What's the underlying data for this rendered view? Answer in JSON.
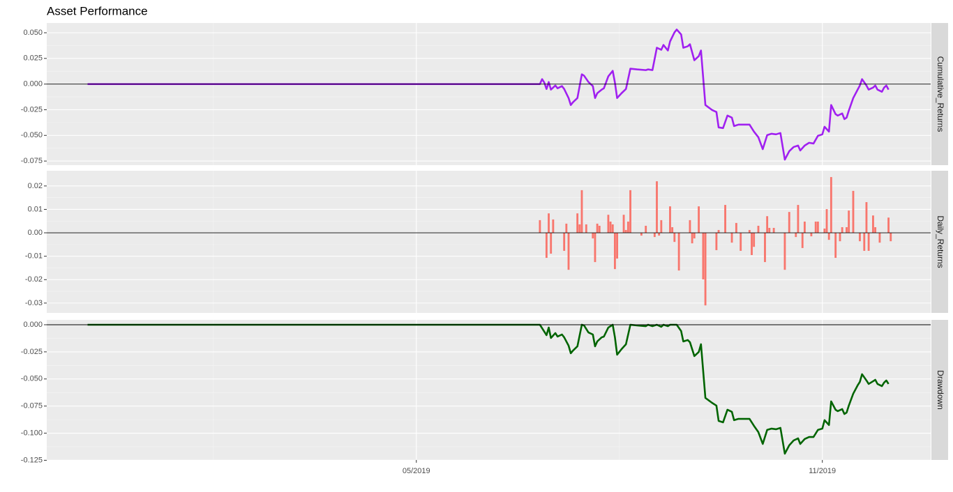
{
  "chart_data": [
    {
      "type": "line",
      "title": "Asset Performance",
      "strip": "Cumulative_Returns",
      "color": "#a020f0",
      "xlim": [
        -47.5,
        353.1
      ],
      "ylim": [
        -0.079,
        0.0595
      ],
      "yticks": [
        {
          "value": 0.05,
          "label": "0.050"
        },
        0.025,
        {
          "value": 0,
          "label": "0.000"
        },
        -0.025,
        {
          "value": -0.05,
          "label": "-0.050"
        },
        -0.075
      ],
      "x": [
        -29,
        176,
        177,
        178,
        179,
        180,
        181,
        183,
        184,
        186,
        187,
        189,
        190,
        191,
        193,
        195,
        196,
        198,
        200,
        201,
        202,
        204,
        205,
        207,
        209,
        210,
        211,
        213,
        215,
        217,
        220,
        224,
        225,
        227,
        229,
        231,
        232,
        234,
        235,
        237,
        238,
        240,
        241,
        243,
        244,
        246,
        248,
        249,
        251,
        254,
        256,
        257,
        259,
        261,
        263,
        264,
        266,
        271,
        273,
        275,
        277,
        279,
        281,
        283,
        285,
        287,
        289,
        291,
        293,
        294,
        296,
        298,
        300,
        302,
        304,
        305,
        307,
        308,
        310,
        311,
        313,
        314,
        315,
        316,
        318,
        320,
        321,
        322,
        324,
        325,
        327,
        328,
        329,
        331,
        332,
        333,
        334
      ],
      "values": [
        0,
        0,
        0.0048,
        0.0014,
        -0.0048,
        0.002,
        -0.0054,
        -0.0014,
        -0.0041,
        -0.002,
        -0.0048,
        -0.0136,
        -0.0204,
        -0.0177,
        -0.0136,
        0.0095,
        0.0082,
        0.002,
        -0.002,
        -0.0136,
        -0.0089,
        -0.0054,
        -0.0041,
        0.0075,
        0.0129,
        0.0014,
        -0.0136,
        -0.0089,
        -0.0048,
        0.015,
        0.0143,
        0.0136,
        0.0143,
        0.0136,
        0.0354,
        0.0334,
        0.0381,
        0.0327,
        0.0416,
        0.0504,
        0.0531,
        0.0484,
        0.0354,
        0.0368,
        0.0388,
        0.0232,
        0.0272,
        0.0327,
        -0.0204,
        -0.0252,
        -0.0272,
        -0.0422,
        -0.0429,
        -0.0307,
        -0.0327,
        -0.0409,
        -0.0395,
        -0.0395,
        -0.0463,
        -0.0518,
        -0.0634,
        -0.0497,
        -0.0484,
        -0.049,
        -0.0477,
        -0.0736,
        -0.0654,
        -0.0613,
        -0.0599,
        -0.0647,
        -0.0599,
        -0.0572,
        -0.0579,
        -0.0504,
        -0.049,
        -0.0416,
        -0.0463,
        -0.0204,
        -0.0293,
        -0.0307,
        -0.0286,
        -0.0341,
        -0.0327,
        -0.0259,
        -0.0136,
        -0.0054,
        -0.0014,
        0.0048,
        -0.0014,
        -0.0054,
        -0.0034,
        -0.0014,
        -0.0054,
        -0.0075,
        -0.0034,
        -0.0014,
        -0.0054
      ]
    },
    {
      "type": "bar",
      "strip": "Daily_Returns",
      "color": "#f8766d",
      "xlim": [
        -47.5,
        353.1
      ],
      "ylim": [
        -0.0342,
        0.0265
      ],
      "yticks": [
        0.02,
        0.01,
        {
          "value": 0,
          "label": "0.00"
        },
        -0.01,
        -0.02,
        -0.03
      ],
      "x": [
        176,
        179,
        180,
        181,
        182,
        187,
        188,
        189,
        193,
        194,
        195,
        197,
        200,
        201,
        202,
        203,
        207,
        208,
        209,
        210,
        211,
        214,
        215,
        216,
        217,
        222,
        224,
        228,
        229,
        230,
        231,
        235,
        236,
        237,
        239,
        244,
        245,
        246,
        248,
        250,
        251,
        256,
        257,
        260,
        263,
        265,
        267,
        271,
        272,
        273,
        275,
        278,
        279,
        280,
        282,
        287,
        289,
        292,
        293,
        295,
        296,
        299,
        301,
        302,
        305,
        306,
        307,
        308,
        310,
        312,
        313,
        315,
        316,
        318,
        321,
        323,
        324,
        325,
        327,
        328,
        330,
        334,
        335
      ],
      "values": [
        0.0054,
        -0.0107,
        0.0083,
        -0.0089,
        0.0057,
        -0.0077,
        0.0039,
        -0.0158,
        0.0083,
        0.0036,
        0.0182,
        0.0036,
        -0.0024,
        -0.0125,
        0.0039,
        0.003,
        0.0077,
        0.0048,
        0.0036,
        -0.0155,
        -0.011,
        0.0077,
        0.0012,
        0.0048,
        0.0182,
        -0.0012,
        0.003,
        -0.0018,
        0.022,
        -0.0012,
        0.0054,
        0.0113,
        0.0024,
        -0.0039,
        -0.0161,
        0.0054,
        -0.0045,
        -0.0024,
        0.0113,
        -0.0199,
        -0.031,
        -0.0074,
        0.0012,
        0.0119,
        -0.0042,
        0.0042,
        -0.0077,
        0.0012,
        -0.0095,
        -0.006,
        0.003,
        -0.0125,
        0.0071,
        0.0021,
        0.0021,
        -0.0158,
        0.0089,
        -0.0018,
        0.0119,
        -0.0065,
        0.0048,
        -0.0015,
        0.0048,
        0.0048,
        0.0018,
        0.0101,
        -0.003,
        0.0238,
        -0.0107,
        -0.0036,
        0.0024,
        0.0024,
        0.0095,
        0.0179,
        -0.0036,
        -0.0077,
        0.0131,
        -0.0077,
        0.0074,
        0.0024,
        -0.0042,
        0.0065,
        -0.0036
      ]
    },
    {
      "type": "line",
      "strip": "Drawdown",
      "color": "#006400",
      "xlim": [
        -47.5,
        353.1
      ],
      "ylim": [
        -0.1247,
        0.0045
      ],
      "yticks": [
        {
          "value": 0,
          "label": "0.000"
        },
        -0.025,
        {
          "value": -0.05,
          "label": "-0.050"
        },
        -0.075,
        {
          "value": -0.1,
          "label": "-0.100"
        },
        -0.125
      ],
      "xticks": [
        {
          "value": 120,
          "label": "05/2019"
        },
        {
          "value": 304,
          "label": "11/2019"
        }
      ],
      "x": [
        -29,
        176,
        178,
        179,
        180,
        181,
        183,
        184,
        186,
        187,
        189,
        190,
        191,
        193,
        195,
        196,
        198,
        200,
        201,
        202,
        204,
        205,
        207,
        209,
        210,
        211,
        213,
        215,
        217,
        220,
        224,
        225,
        227,
        229,
        231,
        232,
        234,
        235,
        237,
        238,
        240,
        241,
        243,
        244,
        246,
        248,
        249,
        251,
        254,
        256,
        257,
        259,
        261,
        263,
        264,
        266,
        271,
        273,
        275,
        277,
        279,
        281,
        283,
        285,
        287,
        289,
        291,
        293,
        294,
        296,
        298,
        300,
        302,
        304,
        305,
        307,
        308,
        310,
        311,
        313,
        314,
        315,
        316,
        318,
        320,
        321,
        322,
        324,
        325,
        327,
        328,
        329,
        331,
        332,
        333,
        334
      ],
      "values": [
        0,
        0,
        -0.0064,
        -0.0096,
        -0.0026,
        -0.0122,
        -0.0077,
        -0.0109,
        -0.009,
        -0.0116,
        -0.0193,
        -0.0263,
        -0.0238,
        -0.0199,
        0,
        -0.0006,
        -0.0071,
        -0.009,
        -0.0199,
        -0.0154,
        -0.0116,
        -0.0109,
        -0.0026,
        0,
        -0.0116,
        -0.0276,
        -0.0225,
        -0.018,
        0,
        -0.0006,
        -0.0013,
        0,
        -0.0013,
        0,
        -0.0019,
        0,
        -0.0013,
        0,
        0,
        0,
        -0.0058,
        -0.0154,
        -0.0141,
        -0.0161,
        -0.0289,
        -0.0251,
        -0.018,
        -0.0675,
        -0.072,
        -0.0746,
        -0.0887,
        -0.09,
        -0.0784,
        -0.0803,
        -0.088,
        -0.0868,
        -0.0868,
        -0.0932,
        -0.099,
        -0.1099,
        -0.097,
        -0.0958,
        -0.0964,
        -0.0951,
        -0.1189,
        -0.1112,
        -0.1067,
        -0.1048,
        -0.1099,
        -0.1054,
        -0.1035,
        -0.1035,
        -0.097,
        -0.0958,
        -0.088,
        -0.0925,
        -0.0707,
        -0.0784,
        -0.0797,
        -0.0778,
        -0.0823,
        -0.081,
        -0.0746,
        -0.0636,
        -0.0559,
        -0.0527,
        -0.0456,
        -0.0514,
        -0.0546,
        -0.0521,
        -0.0508,
        -0.0546,
        -0.0566,
        -0.0533,
        -0.0514,
        -0.0546
      ]
    }
  ]
}
